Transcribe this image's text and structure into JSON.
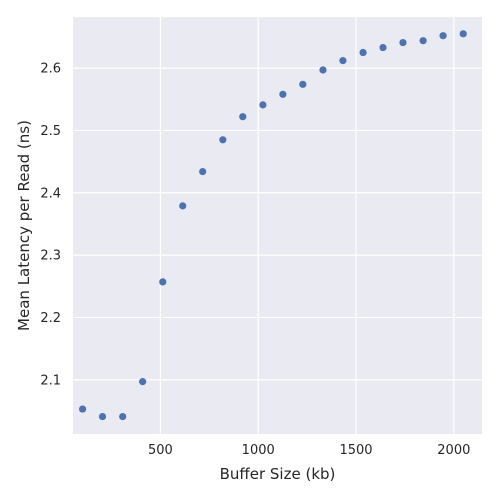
{
  "chart_data": {
    "type": "scatter",
    "title": "",
    "xlabel": "Buffer Size (kb)",
    "ylabel": "Mean Latency per Read (ns)",
    "xlim": [
      53,
      2144
    ],
    "ylim": [
      2.013,
      2.682
    ],
    "xticks": [
      500,
      1000,
      1500,
      2000
    ],
    "yticks": [
      2.1,
      2.2,
      2.3,
      2.4,
      2.5,
      2.6
    ],
    "xtick_labels": [
      "500",
      "1000",
      "1500",
      "2000"
    ],
    "ytick_labels": [
      "2.1",
      "2.2",
      "2.3",
      "2.4",
      "2.5",
      "2.6"
    ],
    "grid": true,
    "colors": {
      "background": "#EAEAF2",
      "grid": "#FFFFFF",
      "marker": "#4C72B0"
    },
    "x": [
      102,
      204,
      307,
      409,
      512,
      614,
      716,
      819,
      921,
      1024,
      1126,
      1228,
      1331,
      1433,
      1536,
      1638,
      1740,
      1843,
      1945,
      2048
    ],
    "y": [
      2.053,
      2.041,
      2.041,
      2.097,
      2.257,
      2.379,
      2.434,
      2.485,
      2.522,
      2.541,
      2.558,
      2.574,
      2.597,
      2.612,
      2.625,
      2.633,
      2.641,
      2.644,
      2.652,
      2.655
    ]
  }
}
